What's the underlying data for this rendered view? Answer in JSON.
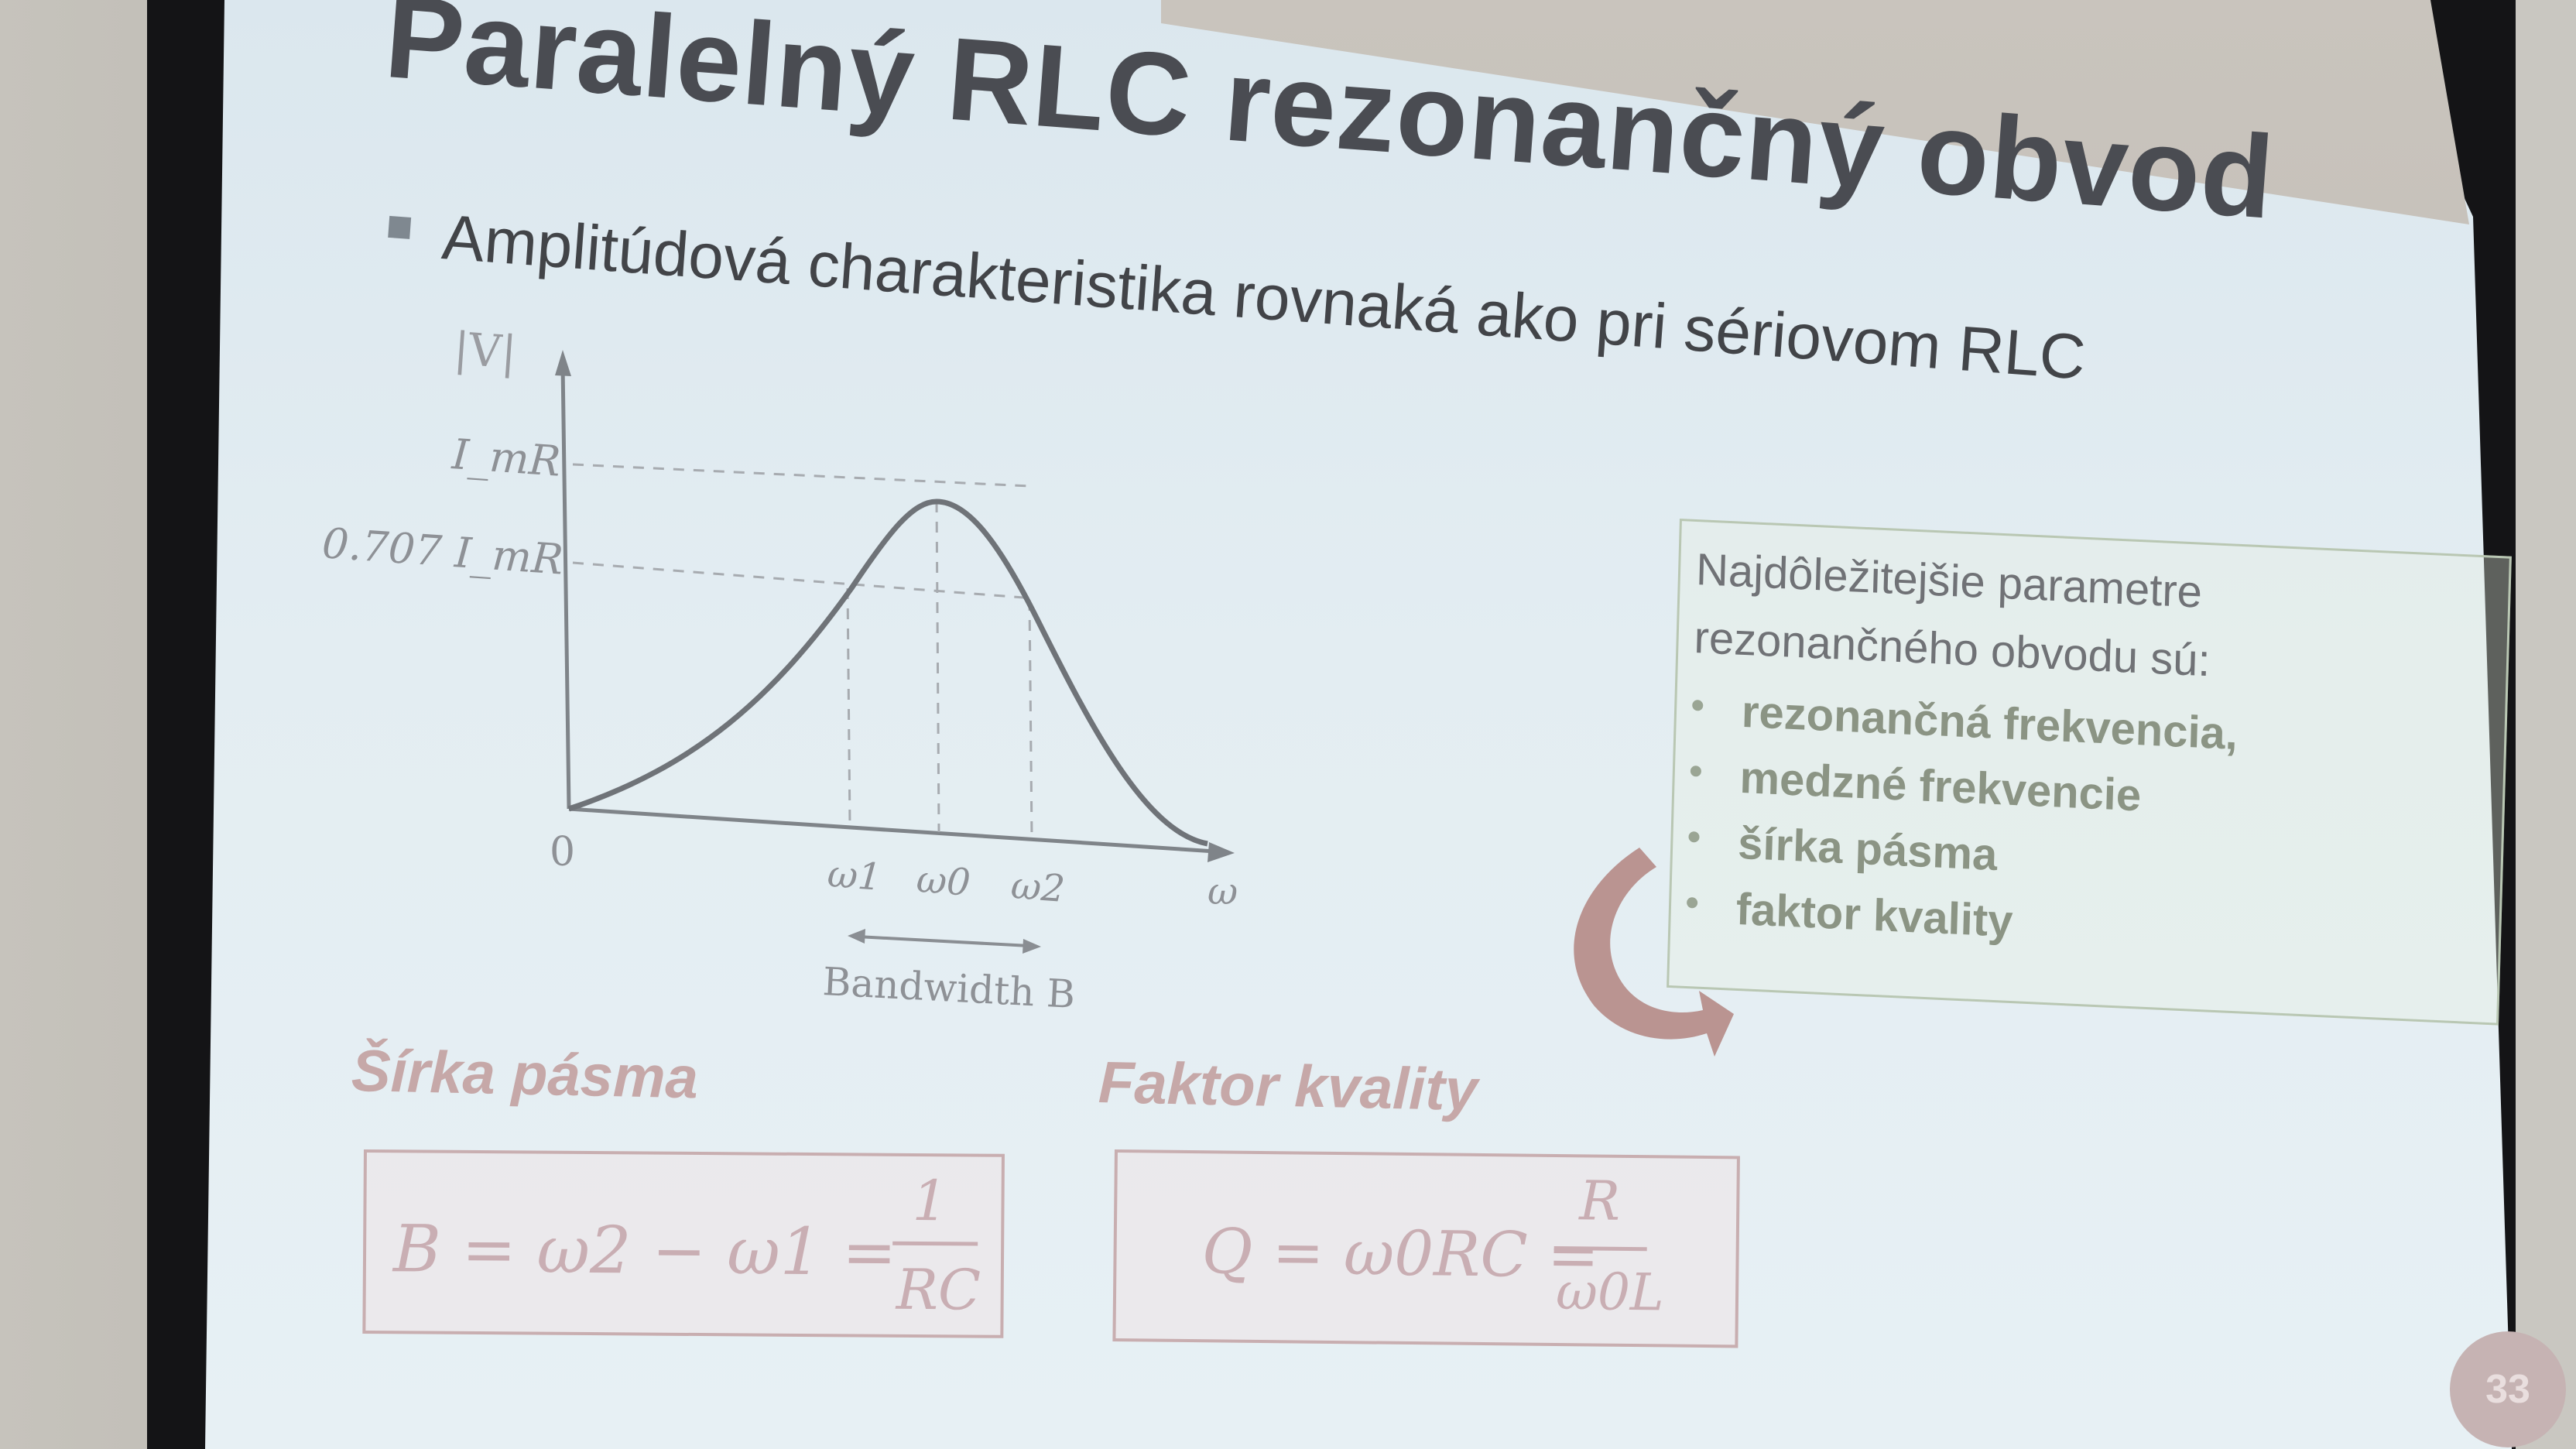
{
  "slide": {
    "title": "Paralelný RLC rezonančný obvod",
    "bullet": "Amplitúdová charakteristika rovnaká ako pri sériovom RLC",
    "page_number": "33"
  },
  "chart_data": {
    "type": "line",
    "ylabel": "|V|",
    "xlabel": "ω",
    "origin_label": "0",
    "y_ticks": [
      "I_mR",
      "0.707 I_mR"
    ],
    "x_ticks": [
      "ω1",
      "ω0",
      "ω2"
    ],
    "annotation": "Bandwidth B"
  },
  "parameters_box": {
    "title_line1": "Najdôležitejšie parametre",
    "title_line2": "rezonančného obvodu sú:",
    "items": [
      "rezonančná frekvencia,",
      "medzné frekvencie",
      "šírka pásma",
      "faktor kvality"
    ]
  },
  "bandwidth": {
    "heading": "Šírka pásma",
    "formula": "B = ω2 − ω1 =",
    "numerator": "1",
    "denominator": "RC"
  },
  "quality": {
    "heading": "Faktor kvality",
    "formula": "Q = ω0RC =",
    "numerator": "R",
    "denominator": "ω0L"
  },
  "colors": {
    "title": "#4a4c52",
    "accent_pink": "#c6a8a8",
    "accent_green": "#8b9484"
  }
}
